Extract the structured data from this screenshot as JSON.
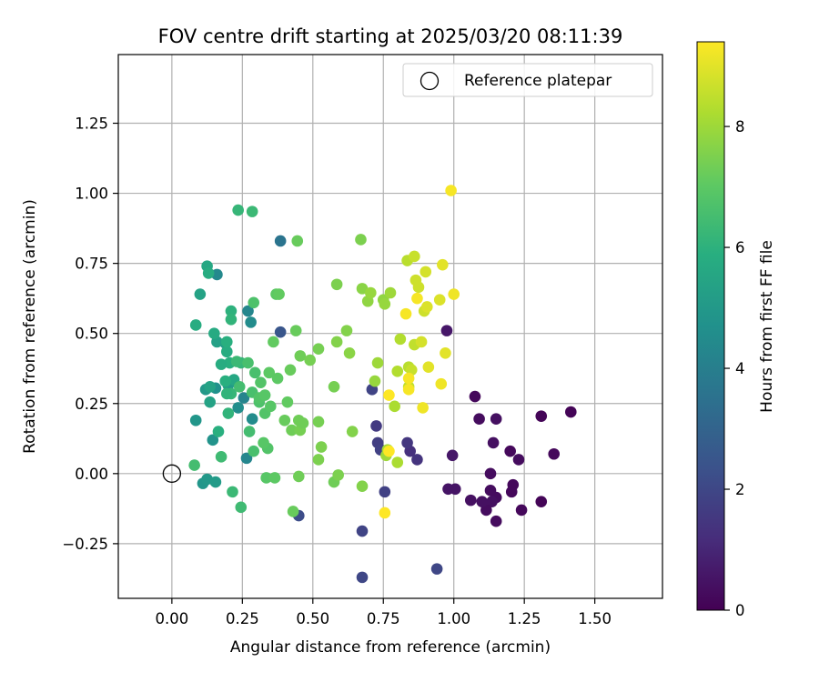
{
  "chart_data": {
    "type": "scatter",
    "title": "FOV centre drift starting at 2025/03/20 08:11:39",
    "xlabel": "Angular distance from reference (arcmin)",
    "ylabel": "Rotation from reference (arcmin)",
    "xlim": [
      -0.19,
      1.74
    ],
    "ylim": [
      -0.445,
      1.495
    ],
    "xticks": [
      0.0,
      0.25,
      0.5,
      0.75,
      1.0,
      1.25,
      1.5
    ],
    "xtick_labels": [
      "0.00",
      "0.25",
      "0.50",
      "0.75",
      "1.00",
      "1.25",
      "1.50"
    ],
    "yticks": [
      -0.25,
      0.0,
      0.25,
      0.5,
      0.75,
      1.0,
      1.25
    ],
    "ytick_labels": [
      "−0.25",
      "0.00",
      "0.25",
      "0.50",
      "0.75",
      "1.00",
      "1.25"
    ],
    "grid": true,
    "legend": {
      "position": "upper-right",
      "entries": [
        {
          "label": "Reference platepar",
          "marker": "open-circle"
        }
      ]
    },
    "reference_point": {
      "x": 0.0,
      "y": 0.0
    },
    "colorbar": {
      "label": "Hours from first FF file",
      "min": 0,
      "max": 9.4,
      "ticks": [
        0,
        2,
        4,
        6,
        8
      ],
      "colormap": "viridis"
    },
    "points": [
      {
        "x": 1.415,
        "y": 0.22,
        "h": 0.1
      },
      {
        "x": 1.31,
        "y": 0.205,
        "h": 0.1
      },
      {
        "x": 1.355,
        "y": 0.07,
        "h": 0.2
      },
      {
        "x": 1.31,
        "y": -0.1,
        "h": 0.1
      },
      {
        "x": 1.24,
        "y": -0.13,
        "h": 0.2
      },
      {
        "x": 1.2,
        "y": 0.08,
        "h": 0.2
      },
      {
        "x": 1.23,
        "y": 0.05,
        "h": 0.3
      },
      {
        "x": 1.21,
        "y": -0.04,
        "h": 0.2
      },
      {
        "x": 1.205,
        "y": -0.065,
        "h": 0.2
      },
      {
        "x": 1.15,
        "y": 0.195,
        "h": 0.4
      },
      {
        "x": 1.09,
        "y": 0.195,
        "h": 0.3
      },
      {
        "x": 1.075,
        "y": 0.275,
        "h": 0.2
      },
      {
        "x": 1.14,
        "y": 0.11,
        "h": 0.4
      },
      {
        "x": 1.13,
        "y": 0.0,
        "h": 0.3
      },
      {
        "x": 1.13,
        "y": -0.06,
        "h": 0.3
      },
      {
        "x": 1.15,
        "y": -0.085,
        "h": 0.3
      },
      {
        "x": 1.135,
        "y": -0.1,
        "h": 0.4
      },
      {
        "x": 1.15,
        "y": -0.17,
        "h": 0.3
      },
      {
        "x": 1.115,
        "y": -0.13,
        "h": 0.3
      },
      {
        "x": 1.1,
        "y": -0.1,
        "h": 0.4
      },
      {
        "x": 1.06,
        "y": -0.095,
        "h": 0.4
      },
      {
        "x": 1.005,
        "y": -0.055,
        "h": 0.5
      },
      {
        "x": 0.98,
        "y": -0.055,
        "h": 0.5
      },
      {
        "x": 0.995,
        "y": 0.065,
        "h": 0.6
      },
      {
        "x": 0.975,
        "y": 0.51,
        "h": 0.6
      },
      {
        "x": 0.845,
        "y": 0.08,
        "h": 1.3
      },
      {
        "x": 0.87,
        "y": 0.05,
        "h": 1.4
      },
      {
        "x": 0.835,
        "y": 0.11,
        "h": 1.5
      },
      {
        "x": 0.725,
        "y": 0.17,
        "h": 1.6
      },
      {
        "x": 0.73,
        "y": 0.11,
        "h": 1.7
      },
      {
        "x": 0.74,
        "y": 0.085,
        "h": 1.8
      },
      {
        "x": 0.71,
        "y": 0.3,
        "h": 1.9
      },
      {
        "x": 0.755,
        "y": -0.065,
        "h": 1.8
      },
      {
        "x": 0.675,
        "y": -0.205,
        "h": 1.9
      },
      {
        "x": 0.675,
        "y": -0.37,
        "h": 2.0
      },
      {
        "x": 0.94,
        "y": -0.34,
        "h": 2.0
      },
      {
        "x": 0.45,
        "y": -0.15,
        "h": 2.2
      },
      {
        "x": 0.385,
        "y": 0.505,
        "h": 2.5
      },
      {
        "x": 0.385,
        "y": 0.83,
        "h": 3.6
      },
      {
        "x": 0.265,
        "y": 0.055,
        "h": 4.3
      },
      {
        "x": 0.255,
        "y": 0.27,
        "h": 4.2
      },
      {
        "x": 0.285,
        "y": 0.195,
        "h": 4.5
      },
      {
        "x": 0.27,
        "y": 0.58,
        "h": 4.3
      },
      {
        "x": 0.28,
        "y": 0.54,
        "h": 4.5
      },
      {
        "x": 0.16,
        "y": 0.71,
        "h": 4.4
      },
      {
        "x": 0.235,
        "y": 0.235,
        "h": 4.6
      },
      {
        "x": 0.155,
        "y": 0.305,
        "h": 4.7
      },
      {
        "x": 0.145,
        "y": 0.12,
        "h": 4.8
      },
      {
        "x": 0.085,
        "y": 0.19,
        "h": 4.9
      },
      {
        "x": 0.12,
        "y": 0.3,
        "h": 5.0
      },
      {
        "x": 0.11,
        "y": -0.035,
        "h": 4.9
      },
      {
        "x": 0.125,
        "y": -0.02,
        "h": 5.0
      },
      {
        "x": 0.155,
        "y": -0.03,
        "h": 5.1
      },
      {
        "x": 0.2,
        "y": 0.315,
        "h": 5.1
      },
      {
        "x": 0.19,
        "y": 0.465,
        "h": 5.2
      },
      {
        "x": 0.16,
        "y": 0.47,
        "h": 5.3
      },
      {
        "x": 0.135,
        "y": 0.31,
        "h": 5.4
      },
      {
        "x": 0.135,
        "y": 0.255,
        "h": 5.4
      },
      {
        "x": 0.1,
        "y": 0.64,
        "h": 5.4
      },
      {
        "x": 0.125,
        "y": 0.74,
        "h": 5.6
      },
      {
        "x": 0.13,
        "y": 0.715,
        "h": 5.8
      },
      {
        "x": 0.085,
        "y": 0.53,
        "h": 5.8
      },
      {
        "x": 0.15,
        "y": 0.5,
        "h": 5.7
      },
      {
        "x": 0.195,
        "y": 0.435,
        "h": 5.8
      },
      {
        "x": 0.205,
        "y": 0.395,
        "h": 5.9
      },
      {
        "x": 0.22,
        "y": 0.335,
        "h": 5.6
      },
      {
        "x": 0.175,
        "y": 0.39,
        "h": 5.8
      },
      {
        "x": 0.19,
        "y": 0.33,
        "h": 5.9
      },
      {
        "x": 0.165,
        "y": 0.15,
        "h": 5.9
      },
      {
        "x": 0.195,
        "y": 0.47,
        "h": 5.9
      },
      {
        "x": 0.21,
        "y": 0.58,
        "h": 6.0
      },
      {
        "x": 0.21,
        "y": 0.55,
        "h": 6.1
      },
      {
        "x": 0.21,
        "y": 0.285,
        "h": 6.2
      },
      {
        "x": 0.2,
        "y": 0.215,
        "h": 6.1
      },
      {
        "x": 0.195,
        "y": 0.285,
        "h": 6.1
      },
      {
        "x": 0.245,
        "y": 0.395,
        "h": 6.2
      },
      {
        "x": 0.23,
        "y": 0.4,
        "h": 6.3
      },
      {
        "x": 0.235,
        "y": 0.94,
        "h": 6.2
      },
      {
        "x": 0.285,
        "y": 0.935,
        "h": 6.3
      },
      {
        "x": 0.215,
        "y": -0.065,
        "h": 6.3
      },
      {
        "x": 0.245,
        "y": -0.12,
        "h": 6.4
      },
      {
        "x": 0.175,
        "y": 0.06,
        "h": 6.4
      },
      {
        "x": 0.08,
        "y": 0.03,
        "h": 6.5
      },
      {
        "x": 0.27,
        "y": 0.395,
        "h": 6.6
      },
      {
        "x": 0.285,
        "y": 0.29,
        "h": 6.6
      },
      {
        "x": 0.295,
        "y": 0.36,
        "h": 6.6
      },
      {
        "x": 0.29,
        "y": 0.61,
        "h": 6.7
      },
      {
        "x": 0.24,
        "y": 0.31,
        "h": 6.5
      },
      {
        "x": 0.275,
        "y": 0.15,
        "h": 6.5
      },
      {
        "x": 0.29,
        "y": 0.08,
        "h": 6.6
      },
      {
        "x": 0.31,
        "y": 0.255,
        "h": 6.7
      },
      {
        "x": 0.31,
        "y": 0.27,
        "h": 6.8
      },
      {
        "x": 0.315,
        "y": 0.325,
        "h": 6.8
      },
      {
        "x": 0.33,
        "y": 0.28,
        "h": 6.9
      },
      {
        "x": 0.33,
        "y": 0.215,
        "h": 6.8
      },
      {
        "x": 0.335,
        "y": -0.015,
        "h": 6.9
      },
      {
        "x": 0.34,
        "y": 0.09,
        "h": 6.8
      },
      {
        "x": 0.325,
        "y": 0.11,
        "h": 6.9
      },
      {
        "x": 0.345,
        "y": 0.36,
        "h": 7.0
      },
      {
        "x": 0.35,
        "y": 0.24,
        "h": 6.9
      },
      {
        "x": 0.37,
        "y": 0.64,
        "h": 7.0
      },
      {
        "x": 0.365,
        "y": -0.015,
        "h": 7.0
      },
      {
        "x": 0.38,
        "y": 0.64,
        "h": 7.1
      },
      {
        "x": 0.36,
        "y": 0.47,
        "h": 7.1
      },
      {
        "x": 0.375,
        "y": 0.34,
        "h": 7.0
      },
      {
        "x": 0.4,
        "y": 0.19,
        "h": 7.2
      },
      {
        "x": 0.41,
        "y": 0.255,
        "h": 7.1
      },
      {
        "x": 0.42,
        "y": 0.37,
        "h": 7.2
      },
      {
        "x": 0.425,
        "y": 0.155,
        "h": 7.3
      },
      {
        "x": 0.44,
        "y": 0.51,
        "h": 7.2
      },
      {
        "x": 0.445,
        "y": 0.83,
        "h": 7.2
      },
      {
        "x": 0.43,
        "y": -0.135,
        "h": 7.2
      },
      {
        "x": 0.45,
        "y": -0.01,
        "h": 7.3
      },
      {
        "x": 0.45,
        "y": 0.19,
        "h": 7.3
      },
      {
        "x": 0.455,
        "y": 0.42,
        "h": 7.3
      },
      {
        "x": 0.455,
        "y": 0.155,
        "h": 7.4
      },
      {
        "x": 0.465,
        "y": 0.18,
        "h": 7.3
      },
      {
        "x": 0.49,
        "y": 0.405,
        "h": 7.4
      },
      {
        "x": 0.52,
        "y": 0.185,
        "h": 7.4
      },
      {
        "x": 0.52,
        "y": 0.445,
        "h": 7.4
      },
      {
        "x": 0.52,
        "y": 0.05,
        "h": 7.5
      },
      {
        "x": 0.53,
        "y": 0.095,
        "h": 7.5
      },
      {
        "x": 0.575,
        "y": -0.03,
        "h": 7.3
      },
      {
        "x": 0.575,
        "y": 0.31,
        "h": 7.4
      },
      {
        "x": 0.585,
        "y": 0.675,
        "h": 7.5
      },
      {
        "x": 0.585,
        "y": 0.47,
        "h": 7.6
      },
      {
        "x": 0.59,
        "y": -0.005,
        "h": 7.5
      },
      {
        "x": 0.62,
        "y": 0.51,
        "h": 7.6
      },
      {
        "x": 0.63,
        "y": 0.43,
        "h": 7.7
      },
      {
        "x": 0.64,
        "y": 0.15,
        "h": 7.6
      },
      {
        "x": 0.67,
        "y": 0.835,
        "h": 7.5
      },
      {
        "x": 0.675,
        "y": -0.045,
        "h": 7.6
      },
      {
        "x": 0.675,
        "y": 0.66,
        "h": 7.7
      },
      {
        "x": 0.695,
        "y": 0.615,
        "h": 7.8
      },
      {
        "x": 0.705,
        "y": 0.645,
        "h": 7.9
      },
      {
        "x": 0.72,
        "y": 0.33,
        "h": 7.9
      },
      {
        "x": 0.73,
        "y": 0.395,
        "h": 8.0
      },
      {
        "x": 0.75,
        "y": 0.62,
        "h": 7.8
      },
      {
        "x": 0.755,
        "y": 0.605,
        "h": 7.9
      },
      {
        "x": 0.76,
        "y": 0.065,
        "h": 8.0
      },
      {
        "x": 0.765,
        "y": 0.085,
        "h": 8.1
      },
      {
        "x": 0.775,
        "y": 0.645,
        "h": 8.0
      },
      {
        "x": 0.79,
        "y": 0.24,
        "h": 8.2
      },
      {
        "x": 0.8,
        "y": 0.04,
        "h": 8.2
      },
      {
        "x": 0.8,
        "y": 0.365,
        "h": 8.3
      },
      {
        "x": 0.81,
        "y": 0.48,
        "h": 8.3
      },
      {
        "x": 0.835,
        "y": 0.76,
        "h": 8.4
      },
      {
        "x": 0.84,
        "y": 0.38,
        "h": 8.4
      },
      {
        "x": 0.84,
        "y": 0.31,
        "h": 8.5
      },
      {
        "x": 0.85,
        "y": 0.37,
        "h": 8.6
      },
      {
        "x": 0.86,
        "y": 0.46,
        "h": 8.5
      },
      {
        "x": 0.86,
        "y": 0.775,
        "h": 8.6
      },
      {
        "x": 0.865,
        "y": 0.69,
        "h": 8.7
      },
      {
        "x": 0.875,
        "y": 0.665,
        "h": 8.7
      },
      {
        "x": 0.885,
        "y": 0.47,
        "h": 8.8
      },
      {
        "x": 0.895,
        "y": 0.58,
        "h": 8.7
      },
      {
        "x": 0.9,
        "y": 0.72,
        "h": 8.8
      },
      {
        "x": 0.905,
        "y": 0.595,
        "h": 8.9
      },
      {
        "x": 0.91,
        "y": 0.38,
        "h": 9.0
      },
      {
        "x": 0.95,
        "y": 0.62,
        "h": 8.9
      },
      {
        "x": 0.96,
        "y": 0.745,
        "h": 9.0
      },
      {
        "x": 0.97,
        "y": 0.43,
        "h": 9.0
      },
      {
        "x": 0.99,
        "y": 1.01,
        "h": 9.3
      },
      {
        "x": 1.0,
        "y": 0.64,
        "h": 9.2
      },
      {
        "x": 0.955,
        "y": 0.32,
        "h": 9.2
      },
      {
        "x": 0.89,
        "y": 0.235,
        "h": 9.2
      },
      {
        "x": 0.84,
        "y": 0.34,
        "h": 9.3
      },
      {
        "x": 0.83,
        "y": 0.57,
        "h": 9.3
      },
      {
        "x": 0.84,
        "y": 0.3,
        "h": 9.3
      },
      {
        "x": 0.87,
        "y": 0.625,
        "h": 9.3
      },
      {
        "x": 0.77,
        "y": 0.28,
        "h": 9.4
      },
      {
        "x": 0.755,
        "y": -0.14,
        "h": 9.4
      },
      {
        "x": 0.77,
        "y": 0.08,
        "h": 9.4
      }
    ]
  }
}
